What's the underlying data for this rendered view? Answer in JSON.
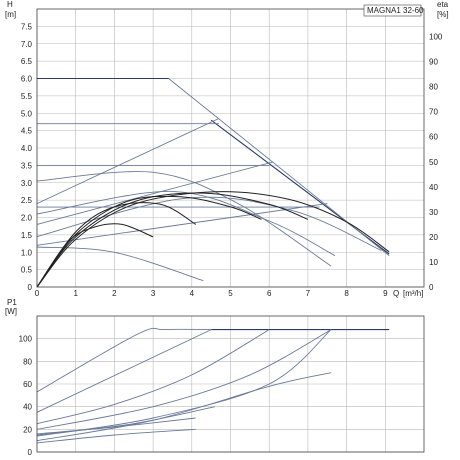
{
  "chart_data": [
    {
      "type": "line",
      "panel": "head",
      "title": "MAGNA1 32-60",
      "ylabel": "H",
      "yunit": "[m]",
      "y2label": "eta",
      "y2unit": "[%]",
      "xlabel": "Q",
      "xunit": "[m³/h]",
      "xlim": [
        0,
        10
      ],
      "ylim": [
        0,
        8
      ],
      "y2lim": [
        0,
        111
      ],
      "xticks": [
        "0",
        "1",
        "2",
        "3",
        "4",
        "5",
        "6",
        "7",
        "8",
        "9"
      ],
      "yticks": [
        "0",
        "0.5",
        "1.0",
        "1.5",
        "2.0",
        "2.5",
        "3.0",
        "3.5",
        "4.0",
        "4.5",
        "5.0",
        "5.5",
        "6.0",
        "6.5",
        "7.0",
        "7.5"
      ],
      "y2ticks": [
        "0",
        "10",
        "20",
        "30",
        "40",
        "50",
        "60",
        "70",
        "80",
        "90",
        "100"
      ],
      "grid": true,
      "series": [
        {
          "style": "dark",
          "x": [
            0,
            3.4
          ],
          "y": [
            6.0,
            6.0
          ]
        },
        {
          "style": "dark",
          "x": [
            4.5,
            9.1
          ],
          "y": [
            4.8,
            0.95
          ]
        },
        {
          "style": "thin",
          "x": [
            3.4,
            9.1
          ],
          "y": [
            6.0,
            0.9
          ]
        },
        {
          "style": "thin",
          "x": [
            0,
            4.7
          ],
          "y": [
            4.7,
            4.7
          ]
        },
        {
          "style": "thin",
          "x": [
            0,
            6.0
          ],
          "y": [
            3.5,
            3.5
          ]
        },
        {
          "style": "thin",
          "x": [
            0,
            7.3
          ],
          "y": [
            2.3,
            2.3
          ]
        },
        {
          "style": "thin",
          "x": [
            0,
            4.7
          ],
          "y": [
            2.4,
            4.85
          ]
        },
        {
          "style": "thin",
          "x": [
            0,
            6.1
          ],
          "y": [
            1.8,
            3.6
          ]
        },
        {
          "style": "thin",
          "x": [
            0,
            7.5
          ],
          "y": [
            1.2,
            2.4
          ]
        },
        {
          "style": "thin",
          "x": [
            0,
            2.0,
            4.3
          ],
          "y": [
            1.15,
            1.0,
            0.18
          ]
        },
        {
          "style": "thin",
          "x": [
            0,
            3.0,
            5.2,
            7.6
          ],
          "y": [
            3.05,
            3.3,
            2.4,
            0.6
          ]
        },
        {
          "style": "thin",
          "x": [
            0,
            3.5,
            6.0,
            7.7
          ],
          "y": [
            2.1,
            2.75,
            1.9,
            0.9
          ]
        },
        {
          "style": "thin",
          "x": [
            0,
            3.8,
            6.6,
            8.9
          ],
          "y": [
            1.45,
            2.55,
            2.2,
            1.05
          ]
        },
        {
          "style": "eta",
          "x": [
            0,
            1.0,
            2.5,
            4.6,
            6.5,
            8.0,
            9.1
          ],
          "y": [
            0,
            19,
            33,
            38,
            35,
            26,
            14
          ]
        },
        {
          "style": "eta",
          "x": [
            0,
            1.0,
            2.5,
            4.3,
            6.0,
            7.0
          ],
          "y": [
            0,
            20,
            34,
            37.5,
            33,
            27
          ]
        },
        {
          "style": "eta",
          "x": [
            0,
            1.0,
            2.3,
            3.7,
            5.0,
            5.8
          ],
          "y": [
            0,
            21,
            34,
            36,
            32,
            27
          ]
        },
        {
          "style": "eta",
          "x": [
            0,
            1.0,
            2.0,
            3.2,
            4.1
          ],
          "y": [
            0,
            22,
            32,
            33,
            25
          ]
        },
        {
          "style": "eta",
          "x": [
            0,
            0.8,
            1.5,
            2.2,
            3.0
          ],
          "y": [
            0,
            18,
            24,
            25,
            20
          ]
        }
      ]
    },
    {
      "type": "line",
      "panel": "power",
      "ylabel": "P1",
      "yunit": "[W]",
      "xlim": [
        0,
        10
      ],
      "ylim": [
        0,
        120
      ],
      "yticks": [
        "0",
        "20",
        "40",
        "60",
        "80",
        "100"
      ],
      "grid": true,
      "series": [
        {
          "style": "dark",
          "x": [
            4.5,
            9.1
          ],
          "y": [
            108,
            108
          ]
        },
        {
          "style": "thin",
          "x": [
            0,
            2.6,
            3.3,
            4.5
          ],
          "y": [
            53,
            104,
            108,
            108
          ]
        },
        {
          "style": "thin",
          "x": [
            0,
            4.5
          ],
          "y": [
            35,
            108
          ]
        },
        {
          "style": "thin",
          "x": [
            0,
            2.0,
            4.0,
            6.0
          ],
          "y": [
            25,
            42,
            68,
            108
          ]
        },
        {
          "style": "thin",
          "x": [
            0,
            3.0,
            5.5,
            7.6
          ],
          "y": [
            20,
            40,
            68,
            108
          ]
        },
        {
          "style": "thin",
          "x": [
            0,
            3.0,
            6.0,
            7.6
          ],
          "y": [
            14,
            30,
            60,
            108
          ]
        },
        {
          "style": "thin",
          "x": [
            0,
            3.0,
            6.0,
            7.6
          ],
          "y": [
            10,
            28,
            58,
            70
          ]
        },
        {
          "style": "thin",
          "x": [
            0,
            2.5,
            4.6
          ],
          "y": [
            15,
            25,
            40
          ]
        },
        {
          "style": "thin",
          "x": [
            0,
            2.0,
            4.1
          ],
          "y": [
            8,
            15,
            20
          ]
        },
        {
          "style": "thin",
          "x": [
            0,
            2.0,
            4.1
          ],
          "y": [
            16,
            22,
            30
          ]
        }
      ]
    }
  ]
}
